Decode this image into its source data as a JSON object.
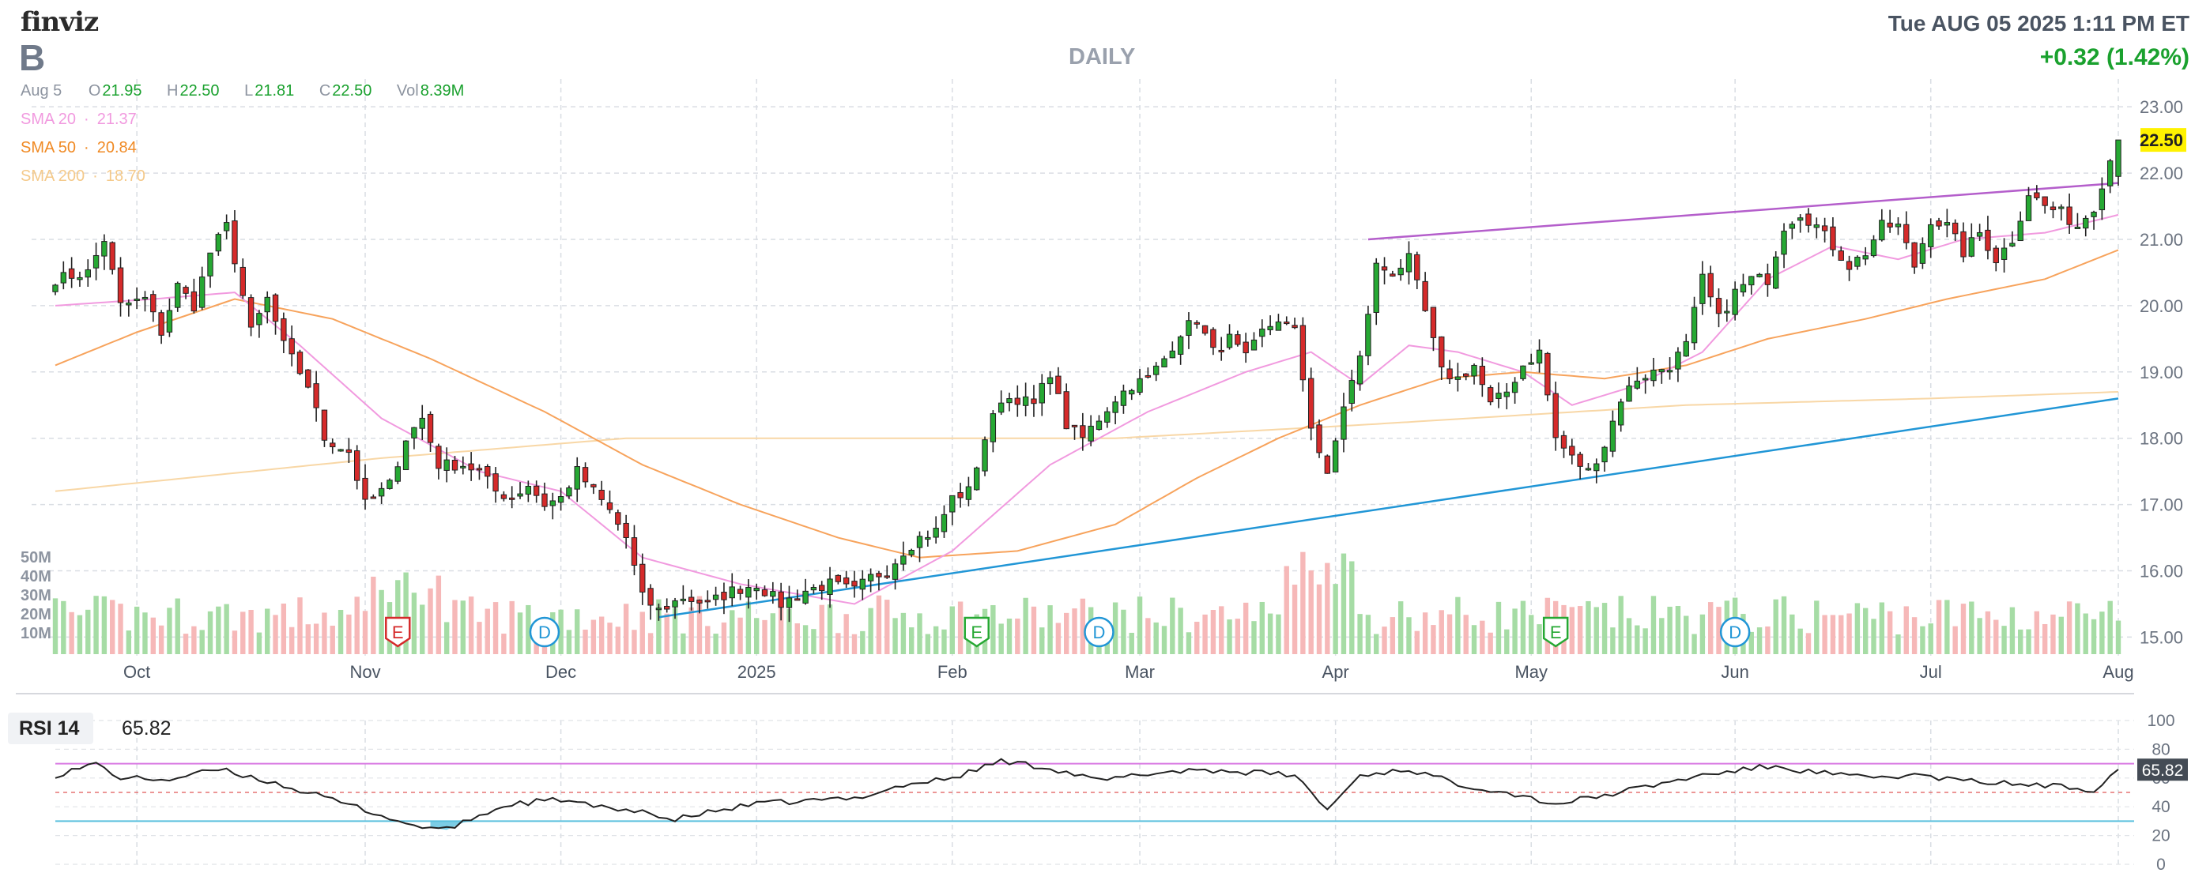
{
  "header": {
    "logo": "finviz",
    "ticker": "B",
    "timeframe": "DAILY",
    "datetime": "Tue AUG 05 2025 1:11 PM ET",
    "change": "+0.32 (1.42%)"
  },
  "ohlc": {
    "date": "Aug 5",
    "open_label": "O",
    "open": "21.95",
    "high_label": "H",
    "high": "22.50",
    "low_label": "L",
    "low": "21.81",
    "close_label": "C",
    "close": "22.50",
    "vol_label": "Vol",
    "vol": "8.39M"
  },
  "sma": [
    {
      "label": "SMA 20",
      "value": "21.37",
      "color": "#f19adf"
    },
    {
      "label": "SMA 50",
      "value": "20.84",
      "color": "#f7a35c"
    },
    {
      "label": "SMA 200",
      "value": "18.70",
      "color": "#f8d7a6"
    }
  ],
  "colors": {
    "up": "#26a833",
    "down": "#d52a2a",
    "vol_up": "#a6dca5",
    "vol_down": "#f6b8b8",
    "trend_upper": "#b45ecb",
    "trend_lower": "#2196d6",
    "rsi_line": "#222222",
    "rsi_upper": "#d97ae3",
    "rsi_lower": "#5bc0de",
    "price_badge": "#fff200"
  },
  "price_badge": "22.50",
  "rsi": {
    "label": "RSI 14",
    "value": "65.82",
    "ticks": [
      "100",
      "80",
      "60",
      "40",
      "20",
      "0"
    ]
  },
  "events": [
    {
      "type": "E",
      "month_pos": "Nov",
      "color": "#d52a2a"
    },
    {
      "type": "D",
      "month_pos": "Nov",
      "color": "#2196d6"
    },
    {
      "type": "E",
      "month_pos": "Feb",
      "color": "#26a833"
    },
    {
      "type": "D",
      "month_pos": "Feb",
      "color": "#2196d6"
    },
    {
      "type": "E",
      "month_pos": "May",
      "color": "#26a833"
    },
    {
      "type": "D",
      "month_pos": "May",
      "color": "#2196d6"
    }
  ],
  "chart_data": {
    "type": "candlestick",
    "y_ticks": [
      "23.00",
      "22.00",
      "21.00",
      "20.00",
      "19.00",
      "18.00",
      "17.00",
      "16.00",
      "15.00"
    ],
    "ylim": [
      14.6,
      23.3
    ],
    "volume_ticks": [
      "50M",
      "40M",
      "30M",
      "20M",
      "10M"
    ],
    "x_ticks": [
      "Oct",
      "Nov",
      "Dec",
      "2025",
      "Feb",
      "Mar",
      "Apr",
      "May",
      "Jun",
      "Jul",
      "Aug"
    ],
    "x_tick_index": [
      10,
      38,
      62,
      86,
      110,
      133,
      157,
      181,
      206,
      230,
      253
    ],
    "close_anchors": [
      [
        0,
        20.4
      ],
      [
        4,
        20.5
      ],
      [
        6,
        21.0
      ],
      [
        8,
        20.0
      ],
      [
        11,
        20.1
      ],
      [
        13,
        19.6
      ],
      [
        15,
        20.3
      ],
      [
        17,
        20.0
      ],
      [
        19,
        20.8
      ],
      [
        21,
        21.2
      ],
      [
        22,
        20.7
      ],
      [
        24,
        19.6
      ],
      [
        26,
        20.1
      ],
      [
        28,
        19.4
      ],
      [
        31,
        18.8
      ],
      [
        33,
        18.0
      ],
      [
        36,
        17.8
      ],
      [
        38,
        17.0
      ],
      [
        41,
        17.3
      ],
      [
        43,
        18.0
      ],
      [
        45,
        18.3
      ],
      [
        47,
        17.6
      ],
      [
        50,
        17.6
      ],
      [
        52,
        17.5
      ],
      [
        54,
        17.2
      ],
      [
        56,
        17.1
      ],
      [
        58,
        17.3
      ],
      [
        60,
        17.0
      ],
      [
        62,
        17.1
      ],
      [
        64,
        17.5
      ],
      [
        66,
        17.2
      ],
      [
        68,
        16.9
      ],
      [
        70,
        16.5
      ],
      [
        72,
        15.6
      ],
      [
        74,
        15.4
      ],
      [
        77,
        15.6
      ],
      [
        80,
        15.5
      ],
      [
        83,
        15.7
      ],
      [
        86,
        15.8
      ],
      [
        89,
        15.5
      ],
      [
        92,
        15.7
      ],
      [
        95,
        15.8
      ],
      [
        98,
        15.7
      ],
      [
        100,
        15.9
      ],
      [
        102,
        16.0
      ],
      [
        104,
        16.3
      ],
      [
        106,
        16.5
      ],
      [
        108,
        16.6
      ],
      [
        110,
        17.1
      ],
      [
        112,
        17.2
      ],
      [
        114,
        18.0
      ],
      [
        116,
        18.6
      ],
      [
        118,
        18.6
      ],
      [
        120,
        18.5
      ],
      [
        122,
        19.0
      ],
      [
        124,
        18.2
      ],
      [
        126,
        18.0
      ],
      [
        128,
        18.3
      ],
      [
        130,
        18.6
      ],
      [
        132,
        18.8
      ],
      [
        134,
        18.9
      ],
      [
        136,
        19.2
      ],
      [
        138,
        19.6
      ],
      [
        140,
        19.8
      ],
      [
        142,
        19.3
      ],
      [
        144,
        19.5
      ],
      [
        146,
        19.2
      ],
      [
        148,
        19.6
      ],
      [
        150,
        19.8
      ],
      [
        152,
        19.6
      ],
      [
        154,
        18.2
      ],
      [
        156,
        17.4
      ],
      [
        158,
        18.5
      ],
      [
        160,
        19.2
      ],
      [
        162,
        20.6
      ],
      [
        164,
        20.5
      ],
      [
        166,
        20.7
      ],
      [
        168,
        19.9
      ],
      [
        170,
        19.0
      ],
      [
        172,
        18.9
      ],
      [
        174,
        19.1
      ],
      [
        176,
        18.5
      ],
      [
        178,
        18.7
      ],
      [
        180,
        19.1
      ],
      [
        182,
        19.3
      ],
      [
        184,
        18.0
      ],
      [
        186,
        17.7
      ],
      [
        188,
        17.5
      ],
      [
        190,
        17.9
      ],
      [
        192,
        18.6
      ],
      [
        194,
        18.9
      ],
      [
        196,
        19.0
      ],
      [
        198,
        19.1
      ],
      [
        200,
        19.4
      ],
      [
        202,
        20.4
      ],
      [
        204,
        19.8
      ],
      [
        206,
        20.2
      ],
      [
        208,
        20.4
      ],
      [
        210,
        20.4
      ],
      [
        212,
        21.2
      ],
      [
        214,
        21.4
      ],
      [
        216,
        21.2
      ],
      [
        218,
        20.9
      ],
      [
        220,
        20.6
      ],
      [
        222,
        20.8
      ],
      [
        224,
        21.2
      ],
      [
        226,
        21.2
      ],
      [
        228,
        20.6
      ],
      [
        230,
        21.3
      ],
      [
        232,
        21.2
      ],
      [
        234,
        20.8
      ],
      [
        236,
        21.1
      ],
      [
        238,
        20.7
      ],
      [
        240,
        21.0
      ],
      [
        242,
        21.7
      ],
      [
        244,
        21.5
      ],
      [
        246,
        21.4
      ],
      [
        248,
        21.2
      ],
      [
        250,
        21.5
      ],
      [
        252,
        22.2
      ],
      [
        253,
        22.5
      ]
    ],
    "sma20_anchors": [
      [
        0,
        20.0
      ],
      [
        12,
        20.1
      ],
      [
        22,
        20.2
      ],
      [
        30,
        19.4
      ],
      [
        40,
        18.3
      ],
      [
        52,
        17.5
      ],
      [
        62,
        17.2
      ],
      [
        72,
        16.2
      ],
      [
        84,
        15.8
      ],
      [
        98,
        15.5
      ],
      [
        110,
        16.3
      ],
      [
        122,
        17.6
      ],
      [
        134,
        18.4
      ],
      [
        146,
        19.0
      ],
      [
        154,
        19.3
      ],
      [
        160,
        18.8
      ],
      [
        166,
        19.4
      ],
      [
        172,
        19.3
      ],
      [
        180,
        19.0
      ],
      [
        186,
        18.5
      ],
      [
        194,
        18.8
      ],
      [
        202,
        19.3
      ],
      [
        210,
        20.4
      ],
      [
        218,
        20.9
      ],
      [
        226,
        20.7
      ],
      [
        234,
        21.0
      ],
      [
        244,
        21.1
      ],
      [
        253,
        21.37
      ]
    ],
    "sma50_anchors": [
      [
        0,
        19.1
      ],
      [
        10,
        19.6
      ],
      [
        22,
        20.1
      ],
      [
        34,
        19.8
      ],
      [
        46,
        19.2
      ],
      [
        60,
        18.4
      ],
      [
        72,
        17.6
      ],
      [
        84,
        17.0
      ],
      [
        96,
        16.5
      ],
      [
        106,
        16.2
      ],
      [
        118,
        16.3
      ],
      [
        130,
        16.7
      ],
      [
        140,
        17.4
      ],
      [
        150,
        18.0
      ],
      [
        160,
        18.5
      ],
      [
        170,
        18.9
      ],
      [
        180,
        19.0
      ],
      [
        190,
        18.9
      ],
      [
        200,
        19.1
      ],
      [
        210,
        19.5
      ],
      [
        222,
        19.8
      ],
      [
        232,
        20.1
      ],
      [
        244,
        20.4
      ],
      [
        253,
        20.84
      ]
    ],
    "sma200_anchors": [
      [
        0,
        17.2
      ],
      [
        40,
        17.7
      ],
      [
        70,
        18.0
      ],
      [
        100,
        18.0
      ],
      [
        130,
        18.0
      ],
      [
        160,
        18.2
      ],
      [
        200,
        18.5
      ],
      [
        230,
        18.6
      ],
      [
        253,
        18.7
      ]
    ],
    "trendlines": [
      {
        "name": "upper",
        "from": [
          161,
          21.0
        ],
        "to": [
          253,
          21.85
        ]
      },
      {
        "name": "lower",
        "from": [
          74,
          15.3
        ],
        "to": [
          253,
          18.6
        ]
      }
    ],
    "rsi_anchors": [
      [
        0,
        62
      ],
      [
        5,
        70
      ],
      [
        8,
        60
      ],
      [
        14,
        59
      ],
      [
        20,
        66
      ],
      [
        26,
        58
      ],
      [
        32,
        48
      ],
      [
        38,
        38
      ],
      [
        43,
        28
      ],
      [
        48,
        24
      ],
      [
        52,
        34
      ],
      [
        56,
        42
      ],
      [
        62,
        45
      ],
      [
        68,
        38
      ],
      [
        72,
        38
      ],
      [
        75,
        30
      ],
      [
        80,
        36
      ],
      [
        86,
        42
      ],
      [
        92,
        44
      ],
      [
        98,
        46
      ],
      [
        104,
        55
      ],
      [
        110,
        60
      ],
      [
        116,
        72
      ],
      [
        122,
        67
      ],
      [
        128,
        58
      ],
      [
        134,
        63
      ],
      [
        140,
        66
      ],
      [
        146,
        64
      ],
      [
        152,
        62
      ],
      [
        156,
        38
      ],
      [
        160,
        62
      ],
      [
        166,
        66
      ],
      [
        172,
        56
      ],
      [
        178,
        50
      ],
      [
        184,
        42
      ],
      [
        190,
        48
      ],
      [
        196,
        55
      ],
      [
        202,
        62
      ],
      [
        210,
        68
      ],
      [
        216,
        64
      ],
      [
        222,
        60
      ],
      [
        228,
        62
      ],
      [
        234,
        58
      ],
      [
        240,
        56
      ],
      [
        246,
        54
      ],
      [
        250,
        52
      ],
      [
        253,
        66
      ]
    ],
    "rsi_levels": [
      70,
      30
    ]
  }
}
